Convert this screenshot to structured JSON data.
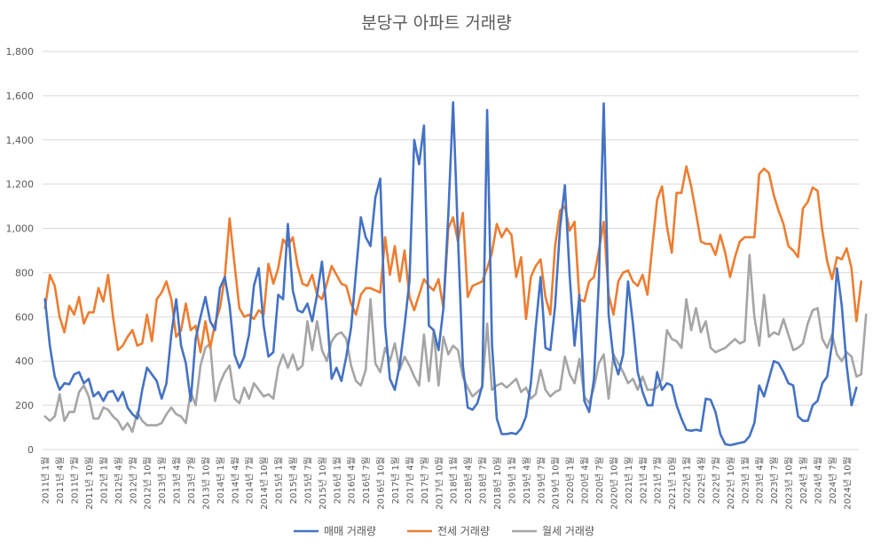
{
  "chart_data": {
    "type": "line",
    "title": "분당구 아파트 거래량",
    "ylim": [
      0,
      1800
    ],
    "yticks": [
      "0",
      "200",
      "400",
      "600",
      "800",
      "1,000",
      "1,200",
      "1,400",
      "1,600",
      "1,800"
    ],
    "grid": true,
    "legend_position": "bottom",
    "x_tick_labels": [
      "2011년 1월",
      "2011년 4월",
      "2011년 7월",
      "2011년 10월",
      "2012년 1월",
      "2012년 4월",
      "2012년 7월",
      "2012년 10월",
      "2013년 1월",
      "2013년 4월",
      "2013년 7월",
      "2013년 10월",
      "2014년 1월",
      "2014년 4월",
      "2014년 7월",
      "2014년 10월",
      "2015년 1월",
      "2015년 4월",
      "2015년 7월",
      "2015년 10월",
      "2016년 1월",
      "2016년 4월",
      "2016년 7월",
      "2016년 10월",
      "2017년 1월",
      "2017년 4월",
      "2017년 7월",
      "2017년 10월",
      "2018년 1월",
      "2018년 4월",
      "2018년 7월",
      "2018년 10월",
      "2019년 1월",
      "2019년 4월",
      "2019년 7월",
      "2019년 10월",
      "2020년 1월",
      "2020년 4월",
      "2020년 7월",
      "2020년 10월",
      "2021년 1월",
      "2021년 4월",
      "2021년 7월",
      "2021년 10월",
      "2022년 1월",
      "2022년 4월",
      "2022년 7월",
      "2022년 10월",
      "2023년 1월",
      "2023년 4월",
      "2023년 7월",
      "2023년 10월",
      "2024년 1월",
      "2024년 4월",
      "2024년 7월",
      "2024년 10월"
    ],
    "series": [
      {
        "name": "매매 거래량",
        "color": "#4472C4",
        "values": [
          680,
          470,
          330,
          270,
          300,
          295,
          340,
          350,
          300,
          320,
          240,
          260,
          220,
          260,
          265,
          220,
          260,
          190,
          160,
          140,
          270,
          370,
          340,
          310,
          230,
          300,
          520,
          680,
          470,
          390,
          220,
          500,
          600,
          690,
          580,
          540,
          730,
          780,
          650,
          430,
          370,
          420,
          520,
          740,
          820,
          560,
          420,
          440,
          700,
          680,
          1020,
          720,
          630,
          620,
          660,
          580,
          700,
          850,
          620,
          320,
          370,
          310,
          420,
          550,
          800,
          1050,
          960,
          920,
          1140,
          1225,
          560,
          320,
          270,
          380,
          560,
          760,
          1400,
          1290,
          1465,
          560,
          540,
          450,
          640,
          1060,
          1570,
          960,
          380,
          190,
          180,
          210,
          290,
          1535,
          480,
          140,
          70,
          70,
          75,
          70,
          95,
          150,
          300,
          550,
          780,
          460,
          450,
          650,
          1000,
          1195,
          780,
          470,
          700,
          220,
          170,
          320,
          760,
          1565,
          610,
          410,
          340,
          430,
          760,
          570,
          350,
          260,
          200,
          200,
          350,
          270,
          300,
          290,
          200,
          140,
          90,
          85,
          90,
          85,
          230,
          225,
          170,
          70,
          25,
          20,
          25,
          30,
          35,
          60,
          120,
          290,
          240,
          320,
          400,
          390,
          350,
          300,
          290,
          150,
          130,
          130,
          200,
          220,
          300,
          330,
          480,
          820,
          650,
          380,
          200,
          280
        ]
      },
      {
        "name": "전세 거래량",
        "color": "#ED7D31",
        "values": [
          640,
          790,
          740,
          600,
          530,
          650,
          610,
          690,
          570,
          620,
          620,
          730,
          670,
          790,
          600,
          450,
          470,
          510,
          540,
          470,
          480,
          610,
          490,
          680,
          710,
          760,
          680,
          510,
          540,
          660,
          540,
          560,
          440,
          580,
          460,
          570,
          640,
          780,
          1045,
          840,
          640,
          600,
          610,
          590,
          630,
          610,
          840,
          750,
          820,
          950,
          920,
          960,
          830,
          750,
          740,
          790,
          700,
          680,
          750,
          830,
          790,
          750,
          740,
          660,
          610,
          700,
          730,
          730,
          720,
          710,
          960,
          790,
          920,
          760,
          900,
          690,
          630,
          700,
          770,
          740,
          720,
          770,
          640,
          1000,
          1050,
          940,
          1070,
          690,
          740,
          750,
          760,
          820,
          890,
          1020,
          960,
          1000,
          970,
          780,
          870,
          590,
          780,
          830,
          860,
          690,
          610,
          920,
          1080,
          1100,
          990,
          1030,
          680,
          670,
          760,
          780,
          900,
          1030,
          700,
          610,
          760,
          800,
          810,
          760,
          740,
          790,
          700,
          920,
          1130,
          1190,
          1010,
          890,
          1160,
          1160,
          1280,
          1190,
          1070,
          940,
          930,
          930,
          880,
          970,
          890,
          780,
          870,
          940,
          960,
          960,
          960,
          1245,
          1270,
          1250,
          1150,
          1080,
          1020,
          920,
          900,
          870,
          1090,
          1120,
          1185,
          1170,
          990,
          850,
          770,
          870,
          860,
          910,
          820,
          580,
          760
        ]
      },
      {
        "name": "월세 거래량",
        "color": "#A5A5A5",
        "values": [
          150,
          130,
          150,
          250,
          130,
          170,
          170,
          260,
          290,
          240,
          140,
          140,
          190,
          180,
          150,
          130,
          90,
          120,
          80,
          170,
          130,
          110,
          110,
          110,
          120,
          160,
          190,
          160,
          150,
          120,
          260,
          200,
          380,
          460,
          480,
          220,
          300,
          350,
          380,
          230,
          210,
          280,
          230,
          300,
          270,
          240,
          250,
          230,
          370,
          430,
          370,
          430,
          360,
          380,
          580,
          450,
          580,
          450,
          400,
          490,
          520,
          530,
          500,
          380,
          310,
          290,
          360,
          680,
          390,
          350,
          460,
          400,
          480,
          360,
          420,
          380,
          330,
          290,
          520,
          310,
          540,
          290,
          510,
          430,
          470,
          450,
          330,
          280,
          240,
          260,
          280,
          570,
          270,
          290,
          300,
          280,
          300,
          320,
          260,
          280,
          230,
          250,
          360,
          270,
          240,
          260,
          270,
          420,
          340,
          300,
          410,
          240,
          210,
          280,
          390,
          430,
          230,
          430,
          390,
          350,
          300,
          320,
          270,
          330,
          270,
          270,
          280,
          320,
          540,
          500,
          490,
          460,
          680,
          540,
          640,
          530,
          580,
          460,
          440,
          450,
          460,
          480,
          500,
          480,
          490,
          880,
          600,
          470,
          700,
          510,
          530,
          520,
          590,
          520,
          450,
          460,
          480,
          570,
          630,
          640,
          500,
          460,
          520,
          430,
          400,
          440,
          420,
          330,
          340,
          610
        ]
      }
    ]
  }
}
